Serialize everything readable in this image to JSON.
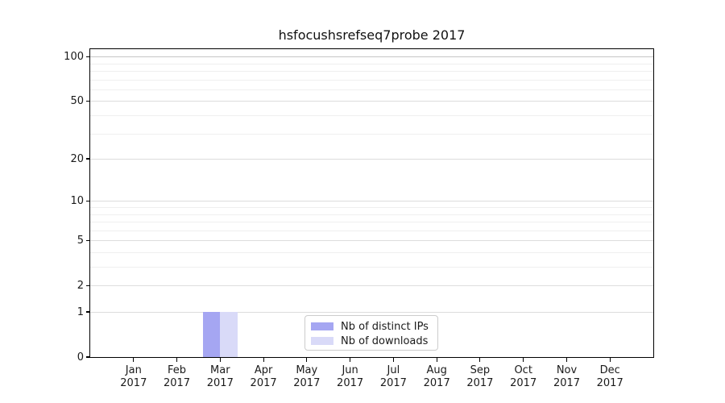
{
  "title": "hsfocushsrefseq7probe 2017",
  "chart_data": {
    "type": "bar",
    "title": "hsfocushsrefseq7probe 2017",
    "categories": [
      "Jan 2017",
      "Feb 2017",
      "Mar 2017",
      "Apr 2017",
      "May 2017",
      "Jun 2017",
      "Jul 2017",
      "Aug 2017",
      "Sep 2017",
      "Oct 2017",
      "Nov 2017",
      "Dec 2017"
    ],
    "series": [
      {
        "name": "Nb of distinct IPs",
        "color": "#a5a6f2",
        "values": [
          0,
          0,
          1,
          0,
          0,
          0,
          0,
          0,
          0,
          0,
          0,
          0
        ]
      },
      {
        "name": "Nb of downloads",
        "color": "#d9daf8",
        "values": [
          0,
          0,
          1,
          0,
          0,
          0,
          0,
          0,
          0,
          0,
          0,
          0
        ]
      }
    ],
    "xlabel": "",
    "ylabel": "",
    "yscale": "log1p",
    "ylim": [
      0,
      112
    ],
    "ytick_values": [
      0,
      1,
      2,
      5,
      10,
      20,
      50,
      100
    ],
    "ytick_labels": [
      "0",
      "1",
      "2",
      "5",
      "10",
      "20",
      "50",
      "100"
    ],
    "minor_grid_values": [
      3,
      4,
      6,
      7,
      8,
      9,
      30,
      40,
      60,
      70,
      80,
      90
    ],
    "grid": true,
    "legend_position": "lower-center-inside"
  },
  "styles": {
    "background": "#ffffff",
    "spine_color": "#000000",
    "text_color": "#1a1a1a",
    "grid_minor_color": "#efefef",
    "grid_major_color": "#dddddd",
    "grid_top_color": "#c6c6c6",
    "legend_border_color": "#cccccc"
  }
}
